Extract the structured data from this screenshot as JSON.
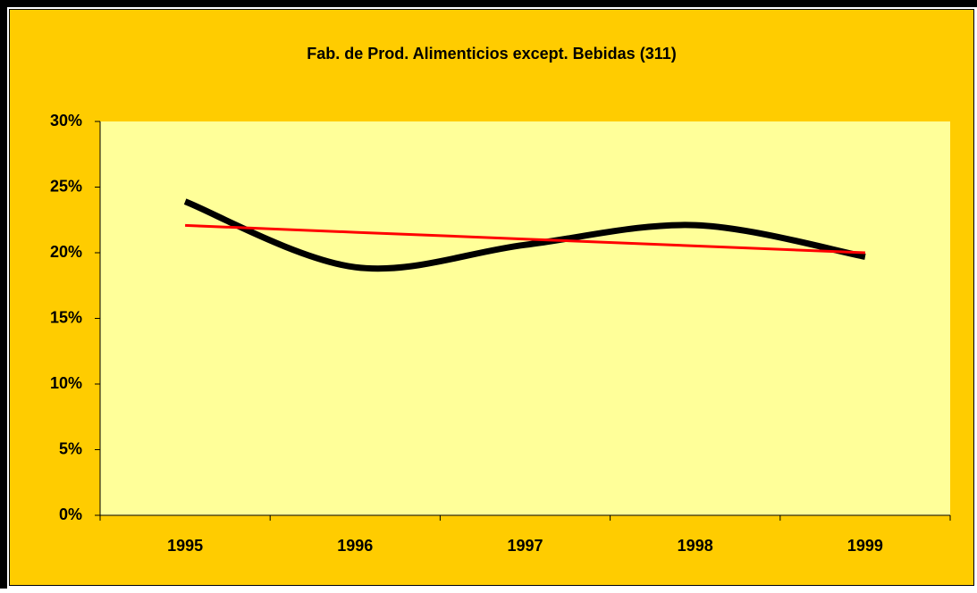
{
  "chart_data": {
    "type": "line",
    "title": "Fab. de Prod. Alimenticios except. Bebidas (311)",
    "categories": [
      "1995",
      "1996",
      "1997",
      "1998",
      "1999"
    ],
    "series": [
      {
        "color": "#000000",
        "smooth": true,
        "values": [
          23.9,
          18.9,
          20.6,
          22.1,
          19.7
        ]
      },
      {
        "color": "#ff0000",
        "smooth": false,
        "values": [
          22.08,
          21.56,
          21.04,
          20.52,
          20.0
        ]
      }
    ],
    "ylim": [
      0,
      30
    ],
    "yticks": [
      {
        "value": 0,
        "label": "0%"
      },
      {
        "value": 5,
        "label": "5%"
      },
      {
        "value": 10,
        "label": "10%"
      },
      {
        "value": 15,
        "label": "15%"
      },
      {
        "value": 20,
        "label": "20%"
      },
      {
        "value": 25,
        "label": "25%"
      },
      {
        "value": 30,
        "label": "30%"
      }
    ],
    "grid": false
  }
}
